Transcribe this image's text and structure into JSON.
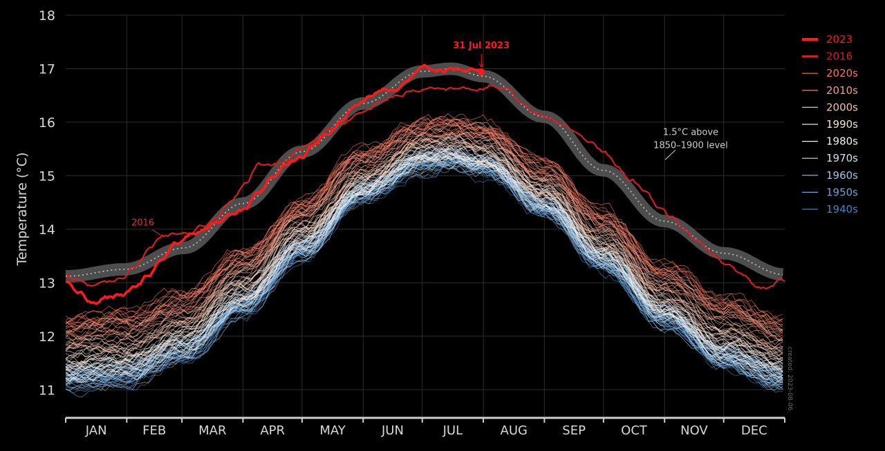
{
  "chart_data": {
    "type": "line",
    "xlabel": "",
    "ylabel": "Temperature (°C)",
    "ylim": [
      10.5,
      18
    ],
    "yticks": [
      11,
      12,
      13,
      14,
      15,
      16,
      17,
      18
    ],
    "x_unit": "day of year",
    "xlim": [
      1,
      366
    ],
    "months": [
      "JAN",
      "FEB",
      "MAR",
      "APR",
      "MAY",
      "JUN",
      "JUL",
      "AUG",
      "SEP",
      "OCT",
      "NOV",
      "DEC"
    ],
    "grid": true,
    "legend_position": "top-right",
    "legend": [
      {
        "label": "2023",
        "color": "#ff1a1a",
        "weight": "bold"
      },
      {
        "label": "2016",
        "color": "#d42020",
        "weight": "bold"
      },
      {
        "label": "2020s",
        "color": "#f2745a",
        "weight": "normal"
      },
      {
        "label": "2010s",
        "color": "#f59a82",
        "weight": "normal"
      },
      {
        "label": "2000s",
        "color": "#f6bfa8",
        "weight": "normal"
      },
      {
        "label": "1990s",
        "color": "#f7e2d6",
        "weight": "normal"
      },
      {
        "label": "1980s",
        "color": "#f2f2f2",
        "weight": "normal"
      },
      {
        "label": "1970s",
        "color": "#cfe2f0",
        "weight": "normal"
      },
      {
        "label": "1960s",
        "color": "#9dc6e4",
        "weight": "normal"
      },
      {
        "label": "1950s",
        "color": "#6aa5d6",
        "weight": "normal"
      },
      {
        "label": "1940s",
        "color": "#3f83c5",
        "weight": "normal"
      }
    ],
    "series": [
      {
        "name": "2023",
        "color": "#ff1a1a",
        "x": [
          1,
          8,
          15,
          22,
          29,
          36,
          43,
          50,
          57,
          64,
          71,
          78,
          85,
          92,
          99,
          106,
          113,
          120,
          127,
          134,
          141,
          148,
          155,
          162,
          169,
          176,
          183,
          190,
          197,
          204,
          211,
          212
        ],
        "values": [
          12.98,
          12.78,
          12.62,
          12.73,
          12.78,
          12.9,
          13.12,
          13.42,
          13.75,
          13.9,
          13.96,
          14.12,
          14.28,
          14.37,
          14.72,
          14.98,
          15.2,
          15.32,
          15.55,
          15.82,
          16.02,
          16.32,
          16.48,
          16.62,
          16.56,
          16.82,
          17.05,
          16.95,
          16.96,
          16.99,
          16.96,
          16.94
        ]
      },
      {
        "name": "2016",
        "color": "#d42020",
        "x": [
          1,
          8,
          15,
          22,
          29,
          36,
          43,
          50,
          57,
          64,
          71,
          78,
          85,
          92,
          99,
          106,
          113,
          120,
          127,
          134,
          141,
          148,
          155,
          162,
          169,
          176,
          183,
          190,
          197,
          204,
          211,
          218,
          225,
          232,
          239,
          246,
          253,
          260,
          267,
          274,
          281,
          288,
          295,
          302,
          309,
          316,
          323,
          330,
          337,
          344,
          351,
          358,
          366
        ],
        "values": [
          13.15,
          13.05,
          12.95,
          13.02,
          13.1,
          13.32,
          13.62,
          13.86,
          13.92,
          13.98,
          14.1,
          14.28,
          14.52,
          14.85,
          15.2,
          15.22,
          15.3,
          15.5,
          15.65,
          15.82,
          15.98,
          16.15,
          16.28,
          16.4,
          16.5,
          16.57,
          16.62,
          16.63,
          16.62,
          16.6,
          16.62,
          16.7,
          16.62,
          16.4,
          16.18,
          16.08,
          15.98,
          15.86,
          15.68,
          15.45,
          15.18,
          14.92,
          14.68,
          14.42,
          14.22,
          13.95,
          13.72,
          13.5,
          13.32,
          13.15,
          12.95,
          12.92,
          13.05
        ]
      }
    ],
    "climatology_band": {
      "label": "1.5°C above 1850–1900 level",
      "x": [
        1,
        31,
        61,
        91,
        121,
        152,
        182,
        197,
        213,
        244,
        274,
        305,
        335,
        366
      ],
      "values": [
        13.12,
        13.25,
        13.65,
        14.48,
        15.45,
        16.35,
        16.95,
        17.0,
        16.86,
        16.1,
        15.1,
        14.15,
        13.55,
        13.15
      ]
    },
    "decade_climatology": [
      {
        "decade": "1940s",
        "offset": -0.42
      },
      {
        "decade": "1950s",
        "offset": -0.38
      },
      {
        "decade": "1960s",
        "offset": -0.36
      },
      {
        "decade": "1970s",
        "offset": -0.3
      },
      {
        "decade": "1980s",
        "offset": -0.18
      },
      {
        "decade": "1990s",
        "offset": -0.02
      },
      {
        "decade": "2000s",
        "offset": 0.18
      },
      {
        "decade": "2010s",
        "offset": 0.38
      },
      {
        "decade": "2020s",
        "offset": 0.6
      }
    ],
    "baseline_curve": {
      "x": [
        1,
        31,
        61,
        91,
        121,
        152,
        182,
        197,
        213,
        244,
        274,
        305,
        335,
        366
      ],
      "values": [
        11.62,
        11.7,
        12.12,
        12.95,
        13.95,
        14.95,
        15.52,
        15.58,
        15.45,
        14.72,
        13.72,
        12.7,
        12.0,
        11.62
      ]
    },
    "annotations": [
      {
        "text": "31 Jul 2023",
        "x": 212,
        "y": 16.94,
        "color": "#ff1a1a"
      },
      {
        "text": "2016",
        "x": 50,
        "y": 13.86,
        "color": "#e03030"
      },
      {
        "lines": [
          "1.5°C above",
          "1850–1900 level"
        ],
        "x": 300,
        "y": 15.35,
        "color": "#cccccc"
      }
    ],
    "created_note": "created: 2023-08-06"
  }
}
